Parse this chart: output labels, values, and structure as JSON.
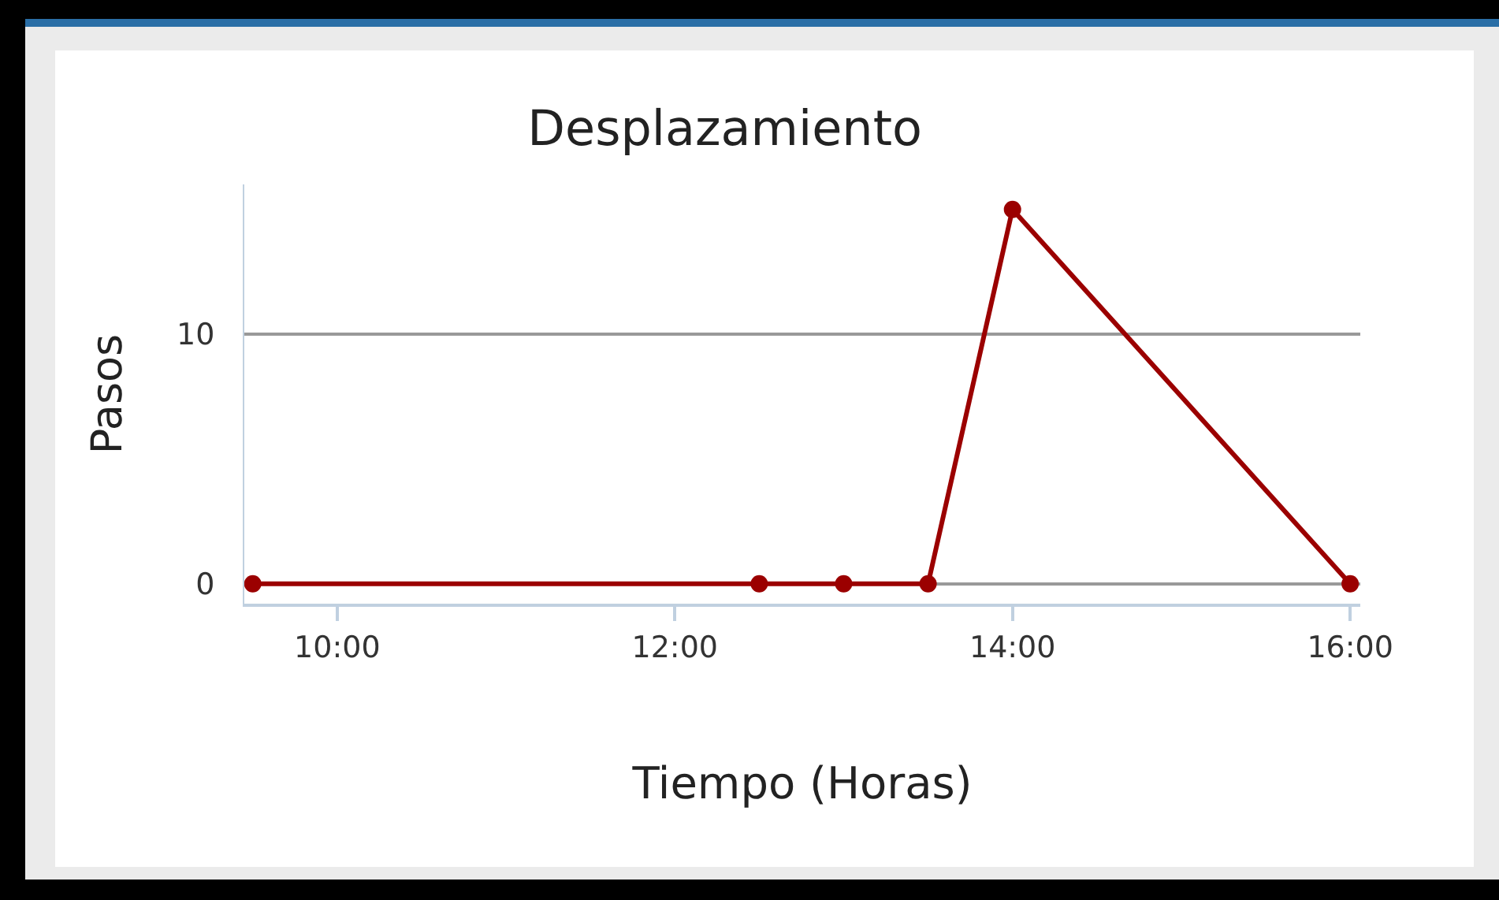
{
  "chart_data": {
    "type": "line",
    "title": "Desplazamiento",
    "xlabel": "Tiempo (Horas)",
    "ylabel": "Pasos",
    "x": [
      9.5,
      12.5,
      13,
      13.5,
      14,
      16
    ],
    "values": [
      0,
      0,
      0,
      0,
      15,
      0
    ],
    "color": "#9b0000",
    "xlim": [
      9.45,
      16.06
    ],
    "ylim": [
      -0.8,
      16
    ],
    "xticks": [
      {
        "value": 10,
        "label": "10:00"
      },
      {
        "value": 12,
        "label": "12:00"
      },
      {
        "value": 14,
        "label": "14:00"
      },
      {
        "value": 16,
        "label": "16:00"
      }
    ],
    "yticks": [
      0,
      10
    ],
    "grid": "y",
    "marker": "circle",
    "line_style": "solid"
  }
}
